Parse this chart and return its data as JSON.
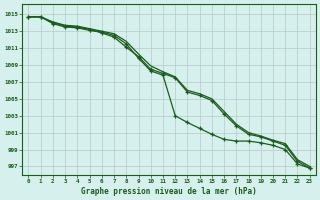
{
  "xlabel": "Graphe pression niveau de la mer (hPa)",
  "background_color": "#d6f0ee",
  "grid_color": "#b8c8c8",
  "line_color": "#1a5c1a",
  "x_ticks": [
    0,
    1,
    2,
    3,
    4,
    5,
    6,
    7,
    8,
    9,
    10,
    11,
    12,
    13,
    14,
    15,
    16,
    17,
    18,
    19,
    20,
    21,
    22,
    23
  ],
  "y_ticks": [
    997,
    999,
    1001,
    1003,
    1005,
    1007,
    1009,
    1011,
    1013,
    1015
  ],
  "ylim": [
    996.0,
    1016.2
  ],
  "xlim": [
    -0.5,
    23.5
  ],
  "series1_x": [
    0,
    1,
    2,
    3,
    4,
    5,
    6,
    7,
    8,
    9,
    10,
    11,
    12,
    13,
    14,
    15,
    16,
    17,
    18,
    19,
    20,
    21,
    22,
    23
  ],
  "series1_y": [
    1014.7,
    1014.7,
    1013.9,
    1013.5,
    1013.4,
    1013.1,
    1012.9,
    1012.5,
    1011.5,
    1009.8,
    1008.3,
    1007.8,
    1003.0,
    1002.2,
    1001.5,
    1000.8,
    1000.2,
    1000.0,
    1000.0,
    999.8,
    999.5,
    999.0,
    997.3,
    996.8
  ],
  "series2_x": [
    0,
    1,
    2,
    3,
    4,
    5,
    6,
    7,
    8,
    9,
    10,
    11,
    12,
    13,
    14,
    15,
    16,
    17,
    18,
    19,
    20,
    21,
    22,
    23
  ],
  "series2_y": [
    1014.7,
    1014.7,
    1014.0,
    1013.6,
    1013.5,
    1013.2,
    1012.8,
    1012.3,
    1011.1,
    1010.0,
    1008.5,
    1008.0,
    1007.5,
    1005.8,
    1005.4,
    1004.8,
    1003.2,
    1001.8,
    1000.8,
    1000.5,
    1000.0,
    999.5,
    997.6,
    996.8
  ],
  "series3_x": [
    0,
    1,
    2,
    3,
    4,
    5,
    6,
    7,
    8,
    9,
    10,
    11,
    12,
    13,
    14,
    15,
    16,
    17,
    18,
    19,
    20,
    21,
    22,
    23
  ],
  "series3_y": [
    1014.7,
    1014.7,
    1014.1,
    1013.7,
    1013.6,
    1013.3,
    1013.0,
    1012.7,
    1011.8,
    1010.3,
    1008.9,
    1008.2,
    1007.6,
    1006.0,
    1005.6,
    1005.0,
    1003.5,
    1002.0,
    1001.0,
    1000.6,
    1000.1,
    999.7,
    997.8,
    997.0
  ]
}
